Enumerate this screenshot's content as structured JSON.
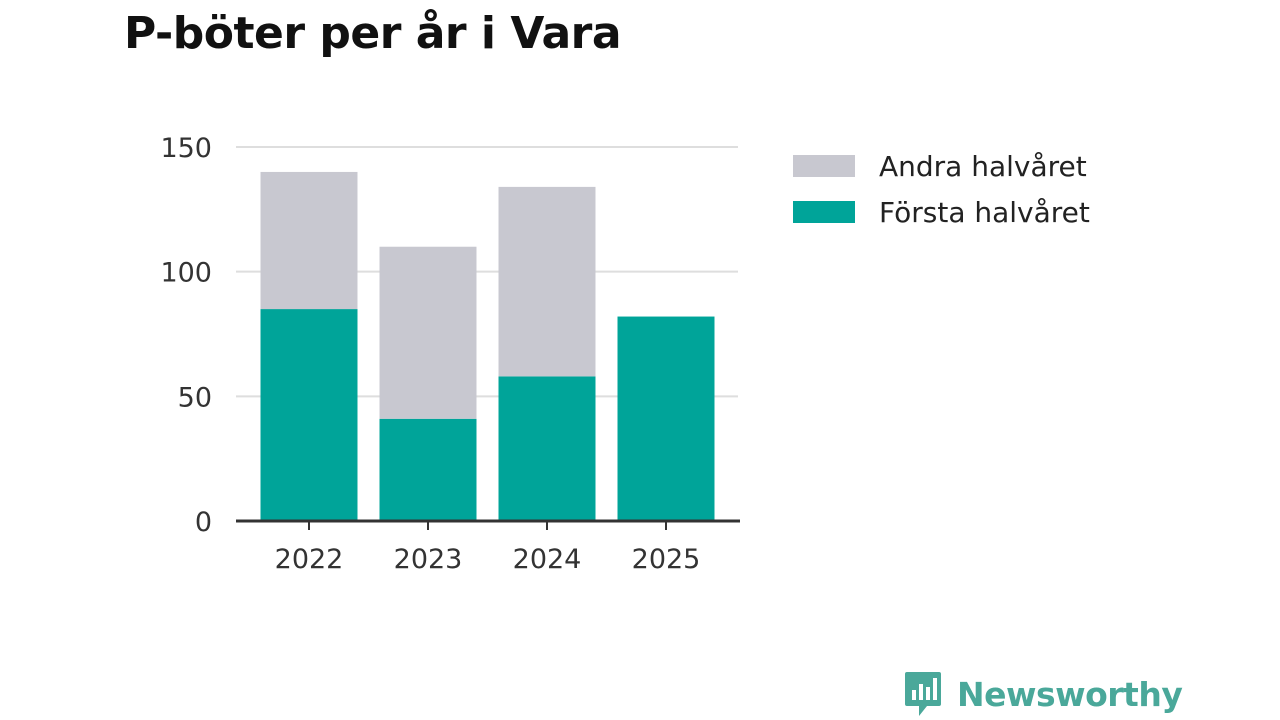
{
  "chart_data": {
    "type": "bar",
    "stacked": true,
    "title": "P-böter per år i Vara",
    "xlabel": "",
    "ylabel": "",
    "categories": [
      "2022",
      "2023",
      "2024",
      "2025"
    ],
    "series": [
      {
        "name": "Första halvåret",
        "color": "#00a499",
        "values": [
          85,
          41,
          58,
          82
        ]
      },
      {
        "name": "Andra halvåret",
        "color": "#c8c8d0",
        "values": [
          55,
          69,
          76,
          0
        ]
      }
    ],
    "ylim": [
      0,
      150
    ],
    "yticks": [
      0,
      50,
      100,
      150
    ],
    "grid": true,
    "legend_position": "right",
    "legend_order": [
      "Andra halvåret",
      "Första halvåret"
    ]
  },
  "brand": {
    "name": "Newsworthy",
    "icon": "bar-chart-speech-bubble-icon",
    "color": "#4aa89a"
  }
}
